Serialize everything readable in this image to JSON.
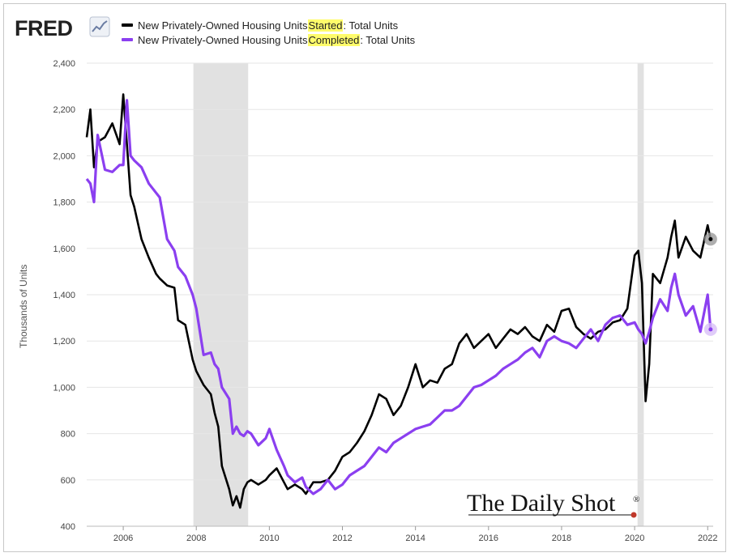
{
  "header": {
    "logo_text": "FRED",
    "logo_icon": "fred-chart-icon"
  },
  "legend": [
    {
      "prefix": "New Privately-Owned Housing Units ",
      "highlight": "Started",
      "suffix": ": Total Units",
      "color": "#000000"
    },
    {
      "prefix": "New Privately-Owned Housing Units ",
      "highlight": "Completed",
      "suffix": ": Total Units",
      "color": "#8b3ff0"
    }
  ],
  "watermark": {
    "text": "The Daily Shot",
    "mark": "®"
  },
  "chart_data": {
    "type": "line",
    "ylabel": "Thousands of Units",
    "ylim": [
      400,
      2400
    ],
    "yticks": [
      400,
      600,
      800,
      1000,
      1200,
      1400,
      1600,
      1800,
      2000,
      2200,
      2400
    ],
    "xlim": [
      2005.0,
      2022.15
    ],
    "xticks": [
      2006,
      2008,
      2010,
      2012,
      2014,
      2016,
      2018,
      2020,
      2022
    ],
    "xtick_labels": [
      "2006",
      "2008",
      "2010",
      "2012",
      "2014",
      "2016",
      "2018",
      "2020",
      "2022"
    ],
    "recessions": [
      [
        2007.92,
        2009.42
      ],
      [
        2020.08,
        2020.25
      ]
    ],
    "grid": "horizontal",
    "series": [
      {
        "name": "New Privately-Owned Housing Units Started: Total Units",
        "color": "#000000",
        "x": [
          2005.0,
          2005.1,
          2005.2,
          2005.3,
          2005.5,
          2005.7,
          2005.9,
          2006.0,
          2006.1,
          2006.2,
          2006.3,
          2006.5,
          2006.7,
          2006.9,
          2007.0,
          2007.2,
          2007.4,
          2007.5,
          2007.7,
          2007.9,
          2008.0,
          2008.2,
          2008.4,
          2008.5,
          2008.6,
          2008.7,
          2008.9,
          2009.0,
          2009.1,
          2009.2,
          2009.3,
          2009.4,
          2009.5,
          2009.7,
          2009.9,
          2010.0,
          2010.2,
          2010.4,
          2010.5,
          2010.7,
          2010.9,
          2011.0,
          2011.2,
          2011.4,
          2011.6,
          2011.8,
          2012.0,
          2012.2,
          2012.4,
          2012.6,
          2012.8,
          2013.0,
          2013.2,
          2013.4,
          2013.6,
          2013.8,
          2014.0,
          2014.2,
          2014.4,
          2014.6,
          2014.8,
          2015.0,
          2015.2,
          2015.4,
          2015.6,
          2015.8,
          2016.0,
          2016.2,
          2016.4,
          2016.6,
          2016.8,
          2017.0,
          2017.2,
          2017.4,
          2017.6,
          2017.8,
          2018.0,
          2018.2,
          2018.4,
          2018.6,
          2018.8,
          2019.0,
          2019.2,
          2019.4,
          2019.6,
          2019.8,
          2020.0,
          2020.1,
          2020.2,
          2020.3,
          2020.4,
          2020.5,
          2020.7,
          2020.9,
          2021.0,
          2021.1,
          2021.2,
          2021.4,
          2021.6,
          2021.8,
          2022.0,
          2022.08
        ],
        "values": [
          2080,
          2200,
          1950,
          2060,
          2080,
          2140,
          2050,
          2265,
          2050,
          1830,
          1780,
          1640,
          1560,
          1490,
          1470,
          1440,
          1430,
          1290,
          1270,
          1120,
          1070,
          1010,
          970,
          890,
          830,
          660,
          560,
          490,
          530,
          480,
          560,
          590,
          600,
          580,
          600,
          620,
          650,
          590,
          560,
          580,
          560,
          540,
          590,
          590,
          600,
          640,
          700,
          720,
          760,
          810,
          880,
          970,
          950,
          880,
          920,
          1000,
          1100,
          1000,
          1030,
          1020,
          1080,
          1100,
          1190,
          1230,
          1170,
          1200,
          1230,
          1170,
          1210,
          1250,
          1230,
          1260,
          1220,
          1200,
          1270,
          1240,
          1330,
          1340,
          1260,
          1230,
          1210,
          1240,
          1250,
          1280,
          1290,
          1340,
          1570,
          1590,
          1450,
          940,
          1100,
          1490,
          1450,
          1560,
          1650,
          1720,
          1560,
          1650,
          1590,
          1560,
          1700,
          1640
        ]
      },
      {
        "name": "New Privately-Owned Housing Units Completed: Total Units",
        "color": "#8b3ff0",
        "x": [
          2005.0,
          2005.1,
          2005.2,
          2005.3,
          2005.5,
          2005.7,
          2005.9,
          2006.0,
          2006.1,
          2006.2,
          2006.3,
          2006.5,
          2006.7,
          2006.9,
          2007.0,
          2007.2,
          2007.4,
          2007.5,
          2007.7,
          2007.9,
          2008.0,
          2008.2,
          2008.4,
          2008.5,
          2008.6,
          2008.7,
          2008.9,
          2009.0,
          2009.1,
          2009.2,
          2009.3,
          2009.4,
          2009.5,
          2009.7,
          2009.9,
          2010.0,
          2010.2,
          2010.4,
          2010.5,
          2010.7,
          2010.9,
          2011.0,
          2011.2,
          2011.4,
          2011.6,
          2011.8,
          2012.0,
          2012.2,
          2012.4,
          2012.6,
          2012.8,
          2013.0,
          2013.2,
          2013.4,
          2013.6,
          2013.8,
          2014.0,
          2014.2,
          2014.4,
          2014.6,
          2014.8,
          2015.0,
          2015.2,
          2015.4,
          2015.6,
          2015.8,
          2016.0,
          2016.2,
          2016.4,
          2016.6,
          2016.8,
          2017.0,
          2017.2,
          2017.4,
          2017.6,
          2017.8,
          2018.0,
          2018.2,
          2018.4,
          2018.6,
          2018.8,
          2019.0,
          2019.2,
          2019.4,
          2019.6,
          2019.8,
          2020.0,
          2020.1,
          2020.2,
          2020.3,
          2020.4,
          2020.5,
          2020.7,
          2020.9,
          2021.0,
          2021.1,
          2021.2,
          2021.4,
          2021.6,
          2021.8,
          2022.0,
          2022.08
        ],
        "values": [
          1900,
          1880,
          1800,
          2090,
          1940,
          1930,
          1960,
          1960,
          2240,
          2000,
          1980,
          1950,
          1880,
          1840,
          1820,
          1640,
          1590,
          1520,
          1480,
          1400,
          1340,
          1140,
          1150,
          1100,
          1080,
          1000,
          950,
          800,
          830,
          800,
          790,
          810,
          800,
          750,
          780,
          820,
          730,
          660,
          620,
          590,
          610,
          570,
          540,
          560,
          600,
          560,
          580,
          620,
          640,
          660,
          700,
          740,
          720,
          760,
          780,
          800,
          820,
          830,
          840,
          870,
          900,
          900,
          920,
          960,
          1000,
          1010,
          1030,
          1050,
          1080,
          1100,
          1120,
          1150,
          1170,
          1130,
          1200,
          1220,
          1200,
          1190,
          1170,
          1210,
          1250,
          1200,
          1270,
          1300,
          1310,
          1270,
          1280,
          1250,
          1230,
          1190,
          1240,
          1300,
          1380,
          1330,
          1430,
          1490,
          1400,
          1310,
          1350,
          1240,
          1400,
          1250
        ]
      }
    ]
  }
}
